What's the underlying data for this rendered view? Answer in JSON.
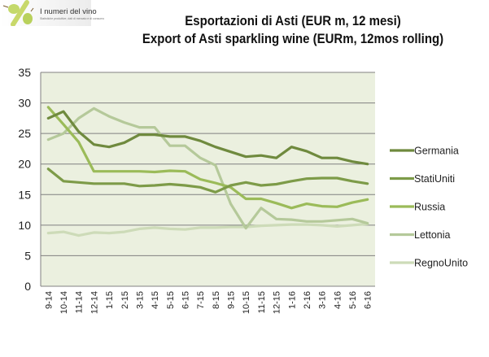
{
  "logo": {
    "name": "I numeri del vino",
    "tagline": "Statistiche produttive, dati di mercato e di consumo"
  },
  "chart_data": {
    "type": "line",
    "title": "Esportazioni di Asti (EUR m, 12 mesi)",
    "subtitle": "Export of Asti sparkling wine (EURm, 12mos rolling)",
    "xlabel": "",
    "ylabel": "",
    "ylim": [
      0,
      35
    ],
    "yticks": [
      0,
      5,
      10,
      15,
      20,
      25,
      30,
      35
    ],
    "grid": true,
    "legend_position": "right",
    "categories": [
      "9-14",
      "10-14",
      "11-14",
      "12-14",
      "1-15",
      "2-15",
      "3-15",
      "4-15",
      "5-15",
      "6-15",
      "7-15",
      "8-15",
      "9-15",
      "10-15",
      "11-15",
      "12-15",
      "1-16",
      "2-16",
      "3-16",
      "4-16",
      "5-16",
      "6-16"
    ],
    "series": [
      {
        "name": "Germania",
        "color": "#6f8a3e",
        "values": [
          27.5,
          28.6,
          25.3,
          23.2,
          22.8,
          23.5,
          24.8,
          24.8,
          24.5,
          24.5,
          23.8,
          22.8,
          22.0,
          21.2,
          21.4,
          21.0,
          22.8,
          22.1,
          21.0,
          21.0,
          20.4,
          20.0
        ]
      },
      {
        "name": "StatiUniti",
        "color": "#7d9b48",
        "values": [
          19.2,
          17.2,
          17.0,
          16.8,
          16.8,
          16.8,
          16.4,
          16.5,
          16.7,
          16.5,
          16.2,
          15.4,
          16.5,
          17.0,
          16.5,
          16.7,
          17.2,
          17.6,
          17.7,
          17.7,
          17.2,
          16.8
        ]
      },
      {
        "name": "Russia",
        "color": "#9bbb59",
        "values": [
          29.3,
          26.5,
          23.6,
          18.8,
          18.8,
          18.8,
          18.8,
          18.7,
          18.9,
          18.8,
          17.5,
          16.9,
          16.2,
          14.3,
          14.3,
          13.6,
          12.8,
          13.5,
          13.1,
          13.0,
          13.7,
          14.2
        ]
      },
      {
        "name": "Lettonia",
        "color": "#b5c99a",
        "values": [
          24.0,
          25.0,
          27.5,
          29.1,
          27.8,
          26.8,
          26.0,
          26.0,
          23.0,
          23.0,
          21.0,
          19.8,
          13.5,
          9.5,
          12.8,
          11.0,
          10.9,
          10.6,
          10.6,
          10.8,
          11.0,
          10.3
        ]
      },
      {
        "name": "RegnoUnito",
        "color": "#cddbb8",
        "values": [
          8.7,
          8.9,
          8.3,
          8.8,
          8.7,
          8.9,
          9.4,
          9.6,
          9.4,
          9.3,
          9.6,
          9.6,
          9.7,
          9.7,
          9.9,
          10.0,
          10.1,
          10.1,
          10.0,
          9.8,
          10.0,
          10.2
        ]
      }
    ]
  }
}
